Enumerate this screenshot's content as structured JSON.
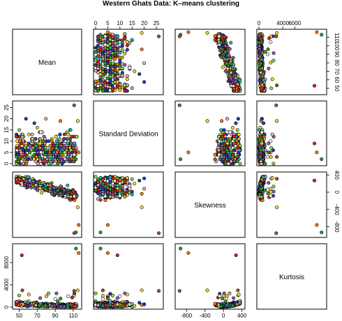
{
  "chart_data": {
    "type": "scatter",
    "title": "Western Ghats Data: K–means clustering",
    "variables": [
      "Mean",
      "Standard Deviation",
      "Skewness",
      "Kurtosis"
    ],
    "ranges": {
      "Mean": [
        45,
        117
      ],
      "Standard Deviation": [
        0,
        27
      ],
      "Skewness": [
        -1000,
        420
      ],
      "Kurtosis": [
        0,
        11000
      ]
    },
    "ticks": {
      "Mean": {
        "left": [
          50,
          60,
          70,
          80,
          90,
          100,
          110
        ],
        "right": [
          50,
          60,
          70,
          80,
          90,
          100,
          110
        ],
        "bottom": [
          50,
          70,
          90,
          110
        ]
      },
      "Standard Deviation": {
        "left": [
          0,
          5,
          10,
          15,
          20,
          25
        ],
        "top": [
          0,
          5,
          10,
          15,
          20,
          25
        ]
      },
      "Skewness": {
        "right": [
          -800,
          -400,
          0,
          400
        ],
        "bottom": [
          -800,
          -400,
          0,
          400
        ]
      },
      "Kurtosis": {
        "left": [
          0,
          4000,
          8000
        ],
        "top": [
          0,
          4000,
          6000
        ]
      }
    },
    "cluster_colors": [
      "#e41a1c",
      "#1f3fbf",
      "#2ca02c",
      "#ffd92f",
      "#9b59b6",
      "#ff7f0e",
      "#17becf",
      "#f4a6c8",
      "#a65628",
      "#8ddc5a",
      "#ffffff"
    ],
    "n_points": 420,
    "outliers": [
      {
        "Mean": 113,
        "Standard Deviation": 2,
        "Skewness": -930,
        "Kurtosis": 10500
      },
      {
        "Mean": 116,
        "Standard Deviation": 5,
        "Skewness": -760,
        "Kurtosis": 9700
      },
      {
        "Mean": 111,
        "Standard Deviation": 26,
        "Skewness": -950,
        "Kurtosis": 2900
      },
      {
        "Mean": 53,
        "Standard Deviation": 9,
        "Skewness": 270,
        "Kurtosis": 9300
      },
      {
        "Mean": 115,
        "Standard Deviation": 19,
        "Skewness": -350,
        "Kurtosis": 3000
      }
    ],
    "grid": false,
    "legend": "none"
  }
}
